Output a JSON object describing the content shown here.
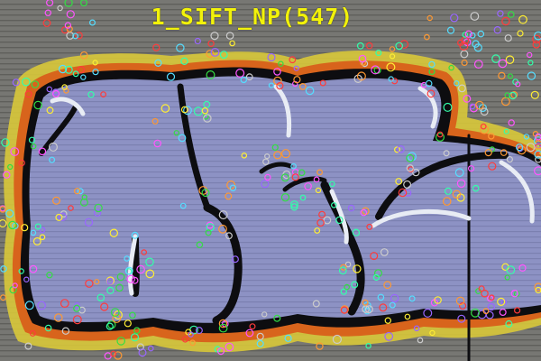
{
  "overlay": {
    "label": "1_SIFT_NP(547)",
    "color": "#f2f20a"
  },
  "scene": {
    "subject": "graffiti-on-corrugated-wall",
    "colors": {
      "wall": "#777773",
      "wall_stripe": "#5e5e5a",
      "yellow_outline": "#d8c83a",
      "orange_outline": "#d8641c",
      "black_outline": "#0d0d10",
      "letter_fill": "#8d92c4",
      "highlight": "#e8ecf4"
    }
  },
  "keypoints": {
    "count_label": 547,
    "marker_shape": "circle",
    "palette": [
      "#ff3b3b",
      "#33dd44",
      "#ffee33",
      "#ff55ff",
      "#55ddff",
      "#ff9933",
      "#9966ff",
      "#cccccc",
      "#33ffaa"
    ]
  }
}
